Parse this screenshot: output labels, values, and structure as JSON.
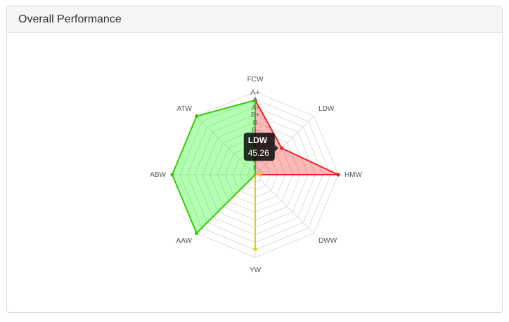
{
  "panel": {
    "title": "Overall Performance"
  },
  "chart_data": {
    "type": "radar",
    "categories": [
      "FCW",
      "LDW",
      "HMW",
      "DWW",
      "YW",
      "AAW",
      "ABW",
      "ATW"
    ],
    "scale_labels": [
      "F",
      "E",
      "D",
      "C",
      "C+",
      "B-",
      "B",
      "B+",
      "A-",
      "A",
      "A+"
    ],
    "rmax": 100,
    "series": [
      {
        "values": [
          90,
          45.26,
          100,
          0,
          0,
          0,
          0,
          0
        ],
        "color": "#ee2222",
        "fill": "rgba(255,0,0,0.28)"
      },
      {
        "values": [
          0,
          0,
          6,
          0,
          90,
          0,
          0,
          0
        ],
        "color": "#e6cc00",
        "fill": "rgba(255,230,0,0.15)"
      },
      {
        "values": [
          90,
          0,
          0,
          0,
          0,
          100,
          100,
          100
        ],
        "color": "#33cc00",
        "fill": "rgba(0,255,0,0.3)"
      }
    ],
    "tooltip": {
      "category": "LDW",
      "value": "45.26"
    }
  }
}
